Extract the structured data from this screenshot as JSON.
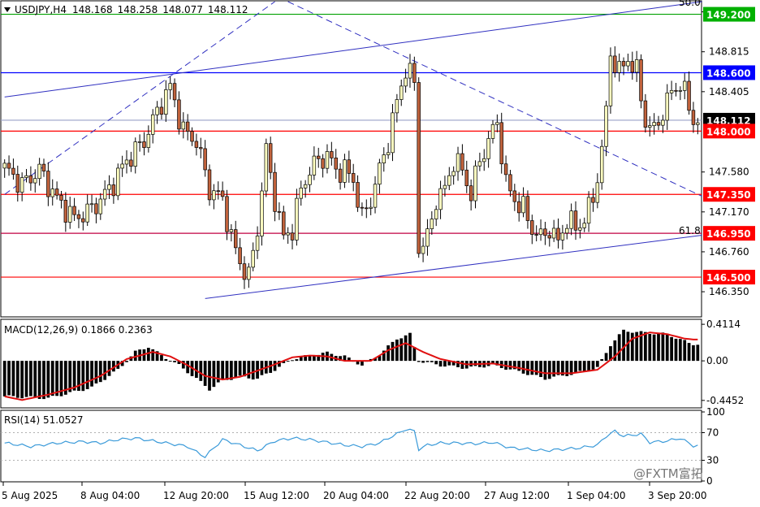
{
  "chart_data": {
    "type": "candlestick",
    "symbol_header": "USDJPY,H4",
    "ohlc_header": [
      "148.168",
      "148.258",
      "148.077",
      "148.112"
    ],
    "price_axis": {
      "range": [
        146.1,
        149.33
      ],
      "ticks": [
        "149.225",
        "148.815",
        "148.405",
        "147.580",
        "147.170",
        "146.760",
        "146.350"
      ]
    },
    "level_tags": [
      {
        "label": "149.200",
        "value": 149.2,
        "color": "#00b000"
      },
      {
        "label": "148.600",
        "value": 148.6,
        "color": "#0000ff"
      },
      {
        "label": "148.112",
        "value": 148.112,
        "color": "#000000"
      },
      {
        "label": "148.000",
        "value": 148.0,
        "color": "#ff0000"
      },
      {
        "label": "147.350",
        "value": 147.35,
        "color": "#ff0000"
      },
      {
        "label": "146.950",
        "value": 146.95,
        "color": "#ff0000"
      },
      {
        "label": "146.500",
        "value": 146.5,
        "color": "#ff0000"
      }
    ],
    "fib_labels": [
      "50.0",
      "61.8"
    ],
    "x_ticks": [
      "5 Aug 2025",
      "8 Aug 04:00",
      "12 Aug 20:00",
      "15 Aug 12:00",
      "20 Aug 04:00",
      "22 Aug 20:00",
      "27 Aug 12:00",
      "1 Sep 04:00",
      "3 Sep 20:00"
    ],
    "close_path": [
      [
        0,
        147.62
      ],
      [
        4,
        147.45
      ],
      [
        8,
        147.6
      ],
      [
        12,
        147.3
      ],
      [
        16,
        147.1
      ],
      [
        20,
        147.2
      ],
      [
        24,
        147.4
      ],
      [
        28,
        147.7
      ],
      [
        32,
        147.9
      ],
      [
        34,
        148.1
      ],
      [
        36,
        148.3
      ],
      [
        38,
        148.45
      ],
      [
        41,
        148.0
      ],
      [
        44,
        147.9
      ],
      [
        47,
        147.4
      ],
      [
        50,
        147.3
      ],
      [
        52,
        146.9
      ],
      [
        54,
        146.65
      ],
      [
        56,
        146.5
      ],
      [
        58,
        147.0
      ],
      [
        60,
        147.8
      ],
      [
        62,
        147.3
      ],
      [
        64,
        146.9
      ],
      [
        66,
        147.0
      ],
      [
        68,
        147.4
      ],
      [
        70,
        147.6
      ],
      [
        72,
        147.7
      ],
      [
        74,
        147.75
      ],
      [
        76,
        147.6
      ],
      [
        78,
        147.6
      ],
      [
        80,
        147.5
      ],
      [
        82,
        147.1
      ],
      [
        84,
        147.3
      ],
      [
        86,
        147.6
      ],
      [
        88,
        147.9
      ],
      [
        90,
        148.3
      ],
      [
        92,
        148.65
      ],
      [
        94,
        148.5
      ],
      [
        95,
        146.8
      ],
      [
        97,
        146.9
      ],
      [
        99,
        147.3
      ],
      [
        101,
        147.4
      ],
      [
        103,
        147.7
      ],
      [
        105,
        147.6
      ],
      [
        107,
        147.35
      ],
      [
        109,
        147.7
      ],
      [
        111,
        147.9
      ],
      [
        113,
        148.1
      ],
      [
        115,
        147.45
      ],
      [
        117,
        147.3
      ],
      [
        119,
        147.2
      ],
      [
        121,
        147.0
      ],
      [
        123,
        146.9
      ],
      [
        125,
        147.0
      ],
      [
        127,
        146.85
      ],
      [
        129,
        147.1
      ],
      [
        131,
        147.0
      ],
      [
        133,
        147.1
      ],
      [
        135,
        147.3
      ],
      [
        137,
        147.8
      ],
      [
        138,
        148.2
      ],
      [
        139,
        148.8
      ],
      [
        141,
        148.6
      ],
      [
        143,
        148.75
      ],
      [
        145,
        148.6
      ],
      [
        147,
        148.1
      ],
      [
        149,
        148.0
      ],
      [
        151,
        148.2
      ],
      [
        153,
        148.4
      ],
      [
        155,
        148.5
      ],
      [
        157,
        148.25
      ],
      [
        158,
        148.112
      ]
    ],
    "price_lines": [
      {
        "type": "horizontal",
        "value": 149.2,
        "color": "#00a000"
      },
      {
        "type": "horizontal",
        "value": 148.6,
        "color": "#0000ff"
      },
      {
        "type": "horizontal",
        "value": 148.112,
        "color": "#9aa0c8"
      },
      {
        "type": "horizontal",
        "value": 148.0,
        "color": "#ff0000"
      },
      {
        "type": "horizontal",
        "value": 147.35,
        "color": "#ff0000"
      },
      {
        "type": "horizontal",
        "value": 146.95,
        "color": "#c00040"
      },
      {
        "type": "horizontal",
        "value": 146.5,
        "color": "#ff0000"
      },
      {
        "type": "trend",
        "from": [
          0,
          148.35
        ],
        "to": [
          160,
          149.33
        ],
        "color": "#3030c0",
        "dash": false
      },
      {
        "type": "trend",
        "from": [
          46,
          146.28
        ],
        "to": [
          160,
          146.93
        ],
        "color": "#3030c0",
        "dash": false
      },
      {
        "type": "trend",
        "from": [
          0,
          147.35
        ],
        "to": [
          62,
          149.33
        ],
        "color": "#3030c0",
        "dash": true
      },
      {
        "type": "trend",
        "from": [
          65,
          149.33
        ],
        "to": [
          160,
          147.33
        ],
        "color": "#3030c0",
        "dash": true
      }
    ],
    "macd": {
      "header": "MACD(12,26,9) 0.1866 0.2363",
      "range": [
        -0.52,
        0.44
      ],
      "ticks": [
        "0.4114",
        "0.00",
        "-0.4452"
      ],
      "hist_path": [
        [
          0,
          -0.4
        ],
        [
          10,
          -0.42
        ],
        [
          20,
          -0.3
        ],
        [
          26,
          -0.1
        ],
        [
          30,
          0.1
        ],
        [
          33,
          0.16
        ],
        [
          36,
          0.06
        ],
        [
          40,
          -0.05
        ],
        [
          44,
          -0.2
        ],
        [
          47,
          -0.32
        ],
        [
          50,
          -0.22
        ],
        [
          54,
          -0.18
        ],
        [
          58,
          -0.2
        ],
        [
          62,
          -0.1
        ],
        [
          66,
          0.02
        ],
        [
          70,
          0.06
        ],
        [
          74,
          0.09
        ],
        [
          78,
          0.05
        ],
        [
          82,
          -0.05
        ],
        [
          86,
          0.07
        ],
        [
          90,
          0.25
        ],
        [
          93,
          0.3
        ],
        [
          95,
          0.0
        ],
        [
          100,
          -0.05
        ],
        [
          106,
          -0.08
        ],
        [
          112,
          -0.05
        ],
        [
          118,
          -0.12
        ],
        [
          124,
          -0.2
        ],
        [
          130,
          -0.15
        ],
        [
          136,
          -0.08
        ],
        [
          139,
          0.18
        ],
        [
          142,
          0.34
        ],
        [
          146,
          0.32
        ],
        [
          152,
          0.3
        ],
        [
          157,
          0.2
        ],
        [
          158,
          0.19
        ]
      ],
      "signal_path": [
        [
          0,
          -0.4
        ],
        [
          4,
          -0.44
        ],
        [
          10,
          -0.38
        ],
        [
          16,
          -0.3
        ],
        [
          22,
          -0.17
        ],
        [
          28,
          0.02
        ],
        [
          34,
          0.1
        ],
        [
          38,
          0.05
        ],
        [
          42,
          -0.05
        ],
        [
          46,
          -0.17
        ],
        [
          50,
          -0.21
        ],
        [
          54,
          -0.18
        ],
        [
          58,
          -0.11
        ],
        [
          62,
          -0.04
        ],
        [
          66,
          0.04
        ],
        [
          70,
          0.06
        ],
        [
          74,
          0.05
        ],
        [
          78,
          0.0
        ],
        [
          84,
          0.0
        ],
        [
          88,
          0.12
        ],
        [
          92,
          0.2
        ],
        [
          96,
          0.1
        ],
        [
          100,
          0.02
        ],
        [
          106,
          -0.04
        ],
        [
          112,
          -0.03
        ],
        [
          118,
          -0.08
        ],
        [
          124,
          -0.14
        ],
        [
          130,
          -0.14
        ],
        [
          136,
          -0.1
        ],
        [
          140,
          0.05
        ],
        [
          144,
          0.25
        ],
        [
          148,
          0.32
        ],
        [
          152,
          0.3
        ],
        [
          156,
          0.25
        ],
        [
          158,
          0.24
        ]
      ]
    },
    "rsi": {
      "header": "RSI(14) 51.0527",
      "range": [
        0,
        100
      ],
      "ticks": [
        "100",
        "70",
        "30",
        "0"
      ],
      "levels": [
        70,
        30
      ],
      "path": [
        [
          0,
          55
        ],
        [
          6,
          50
        ],
        [
          12,
          55
        ],
        [
          18,
          57
        ],
        [
          22,
          55
        ],
        [
          26,
          60
        ],
        [
          30,
          62
        ],
        [
          34,
          58
        ],
        [
          38,
          54
        ],
        [
          42,
          50
        ],
        [
          44,
          42
        ],
        [
          46,
          35
        ],
        [
          48,
          48
        ],
        [
          50,
          60
        ],
        [
          54,
          52
        ],
        [
          58,
          44
        ],
        [
          62,
          58
        ],
        [
          66,
          62
        ],
        [
          70,
          60
        ],
        [
          74,
          56
        ],
        [
          78,
          52
        ],
        [
          82,
          50
        ],
        [
          86,
          55
        ],
        [
          88,
          62
        ],
        [
          90,
          68
        ],
        [
          92,
          75
        ],
        [
          94,
          72
        ],
        [
          95,
          46
        ],
        [
          97,
          52
        ],
        [
          100,
          55
        ],
        [
          104,
          55
        ],
        [
          108,
          54
        ],
        [
          112,
          56
        ],
        [
          116,
          48
        ],
        [
          120,
          46
        ],
        [
          124,
          44
        ],
        [
          128,
          46
        ],
        [
          132,
          48
        ],
        [
          136,
          52
        ],
        [
          138,
          65
        ],
        [
          140,
          72
        ],
        [
          142,
          65
        ],
        [
          146,
          68
        ],
        [
          148,
          56
        ],
        [
          152,
          58
        ],
        [
          155,
          62
        ],
        [
          158,
          51
        ]
      ]
    },
    "bar_count": 160,
    "colors": {
      "bull": "#ffffc0",
      "bear": "#c0623c",
      "wick": "#000000",
      "trend": "#3030c0",
      "rsi": "#3a9ad9",
      "signal": "#e01010"
    }
  },
  "watermark": "@FXTM富拓"
}
